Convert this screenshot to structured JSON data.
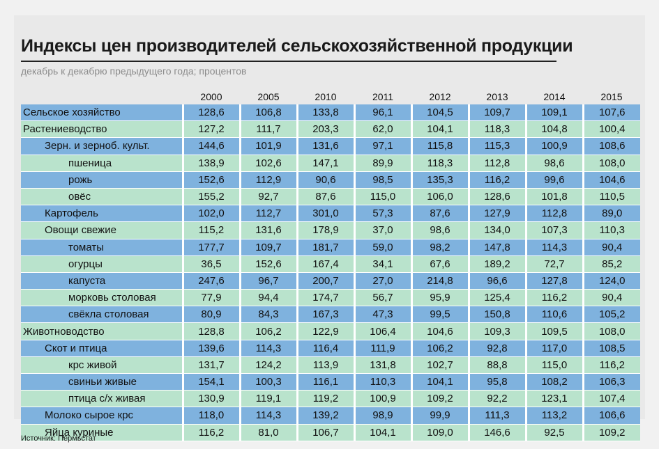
{
  "chart_data": {
    "type": "table",
    "title": "Индексы цен производителей сельскохозяйственной продукции",
    "subtitle": "декабрь к декабрю предыдущего года; процентов",
    "columns": [
      "2000",
      "2005",
      "2010",
      "2011",
      "2012",
      "2013",
      "2014",
      "2015"
    ],
    "rows": [
      {
        "label": "Сельское хозяйство",
        "level": 0,
        "values": [
          "128,6",
          "106,8",
          "133,8",
          "96,1",
          "104,5",
          "109,7",
          "109,1",
          "107,6"
        ]
      },
      {
        "label": "Растениеводство",
        "level": 0,
        "values": [
          "127,2",
          "111,7",
          "203,3",
          "62,0",
          "104,1",
          "118,3",
          "104,8",
          "100,4"
        ]
      },
      {
        "label": "Зерн. и зерноб. культ.",
        "level": 1,
        "values": [
          "144,6",
          "101,9",
          "131,6",
          "97,1",
          "115,8",
          "115,3",
          "100,9",
          "108,6"
        ]
      },
      {
        "label": "пшеница",
        "level": 2,
        "values": [
          "138,9",
          "102,6",
          "147,1",
          "89,9",
          "118,3",
          "112,8",
          "98,6",
          "108,0"
        ]
      },
      {
        "label": "рожь",
        "level": 2,
        "values": [
          "152,6",
          "112,9",
          "90,6",
          "98,5",
          "135,3",
          "116,2",
          "99,6",
          "104,6"
        ]
      },
      {
        "label": "овёс",
        "level": 2,
        "values": [
          "155,2",
          "92,7",
          "87,6",
          "115,0",
          "106,0",
          "128,6",
          "101,8",
          "110,5"
        ]
      },
      {
        "label": "Картофель",
        "level": 1,
        "values": [
          "102,0",
          "112,7",
          "301,0",
          "57,3",
          "87,6",
          "127,9",
          "112,8",
          "89,0"
        ]
      },
      {
        "label": "Овощи свежие",
        "level": 1,
        "values": [
          "115,2",
          "131,6",
          "178,9",
          "37,0",
          "98,6",
          "134,0",
          "107,3",
          "110,3"
        ]
      },
      {
        "label": "томаты",
        "level": 2,
        "values": [
          "177,7",
          "109,7",
          "181,7",
          "59,0",
          "98,2",
          "147,8",
          "114,3",
          "90,4"
        ]
      },
      {
        "label": "огурцы",
        "level": 2,
        "values": [
          "36,5",
          "152,6",
          "167,4",
          "34,1",
          "67,6",
          "189,2",
          "72,7",
          "85,2"
        ]
      },
      {
        "label": "капуста",
        "level": 2,
        "values": [
          "247,6",
          "96,7",
          "200,7",
          "27,0",
          "214,8",
          "96,6",
          "127,8",
          "124,0"
        ]
      },
      {
        "label": "морковь столовая",
        "level": 2,
        "values": [
          "77,9",
          "94,4",
          "174,7",
          "56,7",
          "95,9",
          "125,4",
          "116,2",
          "90,4"
        ]
      },
      {
        "label": "свёкла столовая",
        "level": 2,
        "values": [
          "80,9",
          "84,3",
          "167,3",
          "47,3",
          "99,5",
          "150,8",
          "110,6",
          "105,2"
        ]
      },
      {
        "label": "Животноводство",
        "level": 0,
        "values": [
          "128,8",
          "106,2",
          "122,9",
          "106,4",
          "104,6",
          "109,3",
          "109,5",
          "108,0"
        ]
      },
      {
        "label": "Скот и птица",
        "level": 1,
        "values": [
          "139,6",
          "114,3",
          "116,4",
          "111,9",
          "106,2",
          "92,8",
          "117,0",
          "108,5"
        ]
      },
      {
        "label": "крс живой",
        "level": 2,
        "values": [
          "131,7",
          "124,2",
          "113,9",
          "131,8",
          "102,7",
          "88,8",
          "115,0",
          "116,2"
        ]
      },
      {
        "label": "свиньи живые",
        "level": 2,
        "values": [
          "154,1",
          "100,3",
          "116,1",
          "110,3",
          "104,1",
          "95,8",
          "108,2",
          "106,3"
        ]
      },
      {
        "label": "птица с/х живая",
        "level": 2,
        "values": [
          "130,9",
          "119,1",
          "119,2",
          "100,9",
          "109,2",
          "92,2",
          "123,1",
          "107,4"
        ]
      },
      {
        "label": "Молоко сырое крс",
        "level": 1,
        "values": [
          "118,0",
          "114,3",
          "139,2",
          "98,9",
          "99,9",
          "111,3",
          "113,2",
          "106,6"
        ]
      },
      {
        "label": "Яйца куриные",
        "level": 1,
        "values": [
          "116,2",
          "81,0",
          "106,7",
          "104,1",
          "109,0",
          "146,6",
          "92,5",
          "109,2"
        ]
      }
    ],
    "source": "Источник: Пермьстат",
    "colors": {
      "row_blue": "#7fb2de",
      "row_green": "#b9e3cc",
      "title_rule": "#222222"
    }
  }
}
